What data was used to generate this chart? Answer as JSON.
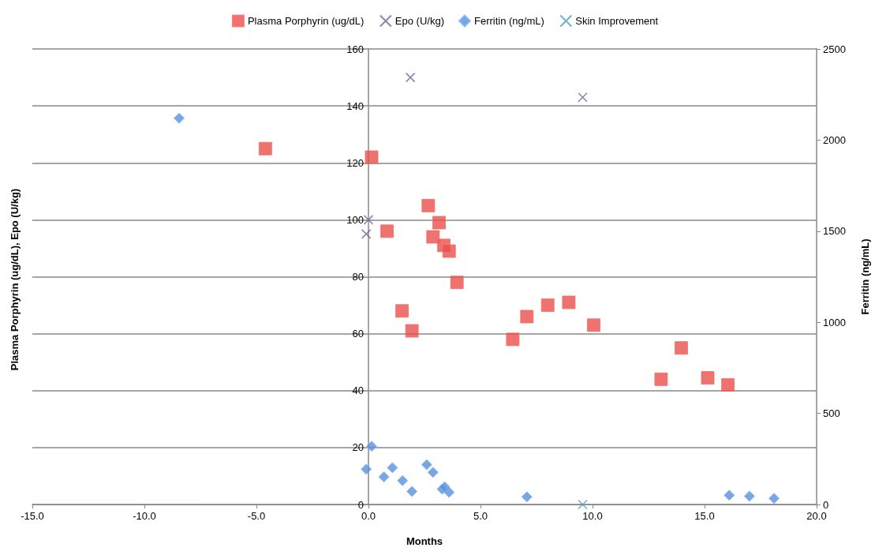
{
  "chart_data": {
    "type": "scatter",
    "xlabel": "Months",
    "ylabel": "Plasma Porphyrin (ug/dL), Epo (U/kg)",
    "y2label": "Ferritin (ng/mL)",
    "xlim": [
      -15,
      20
    ],
    "xticks": [
      {
        "value": -15,
        "label": "-15.0"
      },
      {
        "value": -10,
        "label": "-10.0"
      },
      {
        "value": -5,
        "label": "-5.0"
      },
      {
        "value": 0,
        "label": "0.0"
      },
      {
        "value": 5,
        "label": "5.0"
      },
      {
        "value": 10,
        "label": "10.0"
      },
      {
        "value": 15,
        "label": "15.0"
      },
      {
        "value": 20,
        "label": "20.0"
      }
    ],
    "ylim": [
      0,
      160
    ],
    "yticks": [
      0,
      20,
      40,
      60,
      80,
      100,
      120,
      140,
      160
    ],
    "y2lim": [
      0,
      2500
    ],
    "y2ticks": [
      0,
      500,
      1000,
      1500,
      2000,
      2500
    ],
    "grid": "y",
    "legend": "top",
    "series": [
      {
        "name": "Plasma Porphyrin (ug/dL)",
        "color": "#e8504c",
        "marker": "square",
        "x": [
          -4.6,
          0.14,
          0.83,
          1.5,
          1.94,
          2.67,
          3.15,
          2.88,
          3.36,
          3.6,
          3.95,
          6.44,
          7.07,
          8.0,
          8.94,
          10.05,
          13.06,
          13.96,
          15.14,
          16.04
        ],
        "values": [
          125,
          122,
          96,
          68,
          61,
          105,
          99,
          94,
          91,
          89,
          78,
          58,
          66,
          70,
          71,
          63,
          44,
          55,
          44.5,
          42
        ]
      },
      {
        "name": "Epo (U/kg)",
        "color": "#7a629a",
        "marker": "cross",
        "x": [
          -0.1,
          0,
          1.87,
          9.56
        ],
        "values": [
          95,
          100,
          150,
          143
        ]
      },
      {
        "name": "Ferritin (ng/mL)",
        "color": "#5b8fdb",
        "marker": "diamond",
        "axis": "y2",
        "x": [
          -8.45,
          -0.1,
          0.14,
          0.69,
          1.07,
          1.52,
          1.94,
          2.6,
          2.88,
          3.29,
          3.4,
          3.6,
          7.07,
          16.1,
          17.0,
          18.1
        ],
        "values": [
          2120,
          194,
          320,
          152,
          202,
          131,
          72,
          219,
          177,
          84,
          97,
          67,
          42,
          51,
          46,
          34
        ]
      },
      {
        "name": "Skin Improvement",
        "color": "#4aa3b5",
        "marker": "cross",
        "x": [
          9.56
        ],
        "values": [
          0
        ]
      }
    ]
  }
}
